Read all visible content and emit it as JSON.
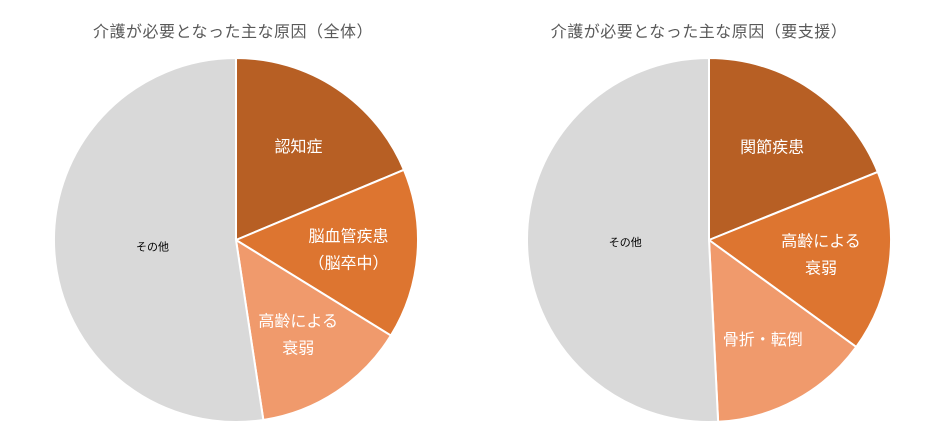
{
  "chart_data": [
    {
      "type": "pie",
      "title": "介護が必要となった主な原因（全体）",
      "slices": [
        {
          "label_lines": [
            "認知症"
          ],
          "value": 18.7,
          "color": "#b75f24"
        },
        {
          "label_lines": [
            "脳血管疾患",
            "（脳卒中）"
          ],
          "value": 15.1,
          "color": "#dd7530"
        },
        {
          "label_lines": [
            "高齢による",
            "衰弱"
          ],
          "value": 13.8,
          "color": "#f09a6c"
        },
        {
          "label_lines": [
            "その他"
          ],
          "value": 52.4,
          "color": "#d9d9d9"
        }
      ]
    },
    {
      "type": "pie",
      "title": "介護が必要となった主な原因（要支援）",
      "slices": [
        {
          "label_lines": [
            "関節疾患"
          ],
          "value": 18.9,
          "color": "#b75f24"
        },
        {
          "label_lines": [
            "高齢による",
            "衰弱"
          ],
          "value": 16.1,
          "color": "#dd7530"
        },
        {
          "label_lines": [
            "骨折・転倒"
          ],
          "value": 14.2,
          "color": "#f09a6c"
        },
        {
          "label_lines": [
            "その他"
          ],
          "value": 50.8,
          "color": "#d9d9d9"
        }
      ]
    }
  ]
}
